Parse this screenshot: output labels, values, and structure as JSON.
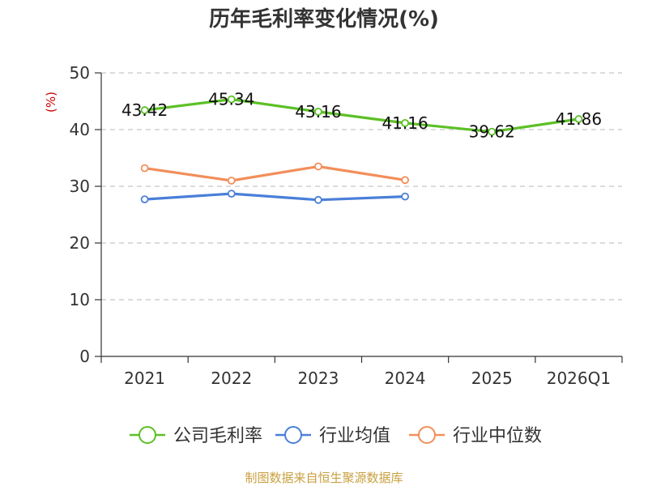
{
  "chart_data": {
    "type": "line",
    "title": "历年毛利率变化情况(%)",
    "ylabel": "(%)",
    "xlabel": "",
    "categories": [
      "2021",
      "2022",
      "2023",
      "2024",
      "2025",
      "2026Q1"
    ],
    "ylim": [
      0,
      50
    ],
    "yticks": [
      0,
      10,
      20,
      30,
      40,
      50
    ],
    "grid": true,
    "legend_position": "bottom",
    "series": [
      {
        "name": "公司毛利率",
        "color": "#5cc026",
        "values": [
          43.42,
          45.34,
          43.16,
          41.16,
          39.62,
          41.86
        ],
        "labels": [
          "43.42",
          "45.34",
          "43.16",
          "41.16",
          "39.62",
          "41.86"
        ]
      },
      {
        "name": "行业均值",
        "color": "#4a7fd8",
        "values": [
          27.7,
          28.7,
          27.6,
          28.2,
          null,
          null
        ],
        "labels": []
      },
      {
        "name": "行业中位数",
        "color": "#f28e5a",
        "values": [
          33.2,
          31.0,
          33.5,
          31.1,
          null,
          null
        ],
        "labels": []
      }
    ],
    "source": "制图数据来自恒生聚源数据库"
  }
}
